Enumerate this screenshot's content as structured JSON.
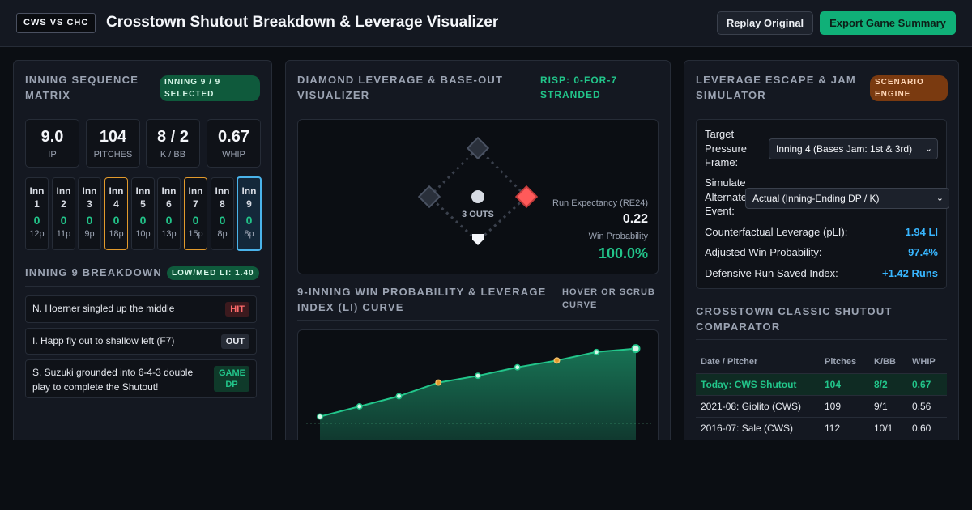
{
  "header": {
    "logo": "CWS VS CHC",
    "title": "Crosstown Shutout Breakdown & Leverage Visualizer",
    "replay_label": "Replay Original",
    "export_label": "Export Game Summary"
  },
  "left": {
    "title": "Inning Sequence Matrix",
    "badge": "INNING 9 / 9 SELECTED",
    "stats": [
      {
        "value": "9.0",
        "label": "IP"
      },
      {
        "value": "104",
        "label": "PITCHES"
      },
      {
        "value": "8 / 2",
        "label": "K / BB"
      },
      {
        "value": "0.67",
        "label": "WHIP"
      }
    ],
    "innings": [
      {
        "title": "Inn 1",
        "runs": "0",
        "pitches": "12p"
      },
      {
        "title": "Inn 2",
        "runs": "0",
        "pitches": "11p"
      },
      {
        "title": "Inn 3",
        "runs": "0",
        "pitches": "9p"
      },
      {
        "title": "Inn 4",
        "runs": "0",
        "pitches": "18p"
      },
      {
        "title": "Inn 5",
        "runs": "0",
        "pitches": "10p"
      },
      {
        "title": "Inn 6",
        "runs": "0",
        "pitches": "13p"
      },
      {
        "title": "Inn 7",
        "runs": "0",
        "pitches": "15p"
      },
      {
        "title": "Inn 8",
        "runs": "0",
        "pitches": "8p"
      },
      {
        "title": "Inn 9",
        "runs": "0",
        "pitches": "8p"
      }
    ],
    "breakdown_title": "Inning 9 Breakdown",
    "breakdown_badge": "LOW/MED LI: 1.40",
    "plays": [
      {
        "text": "N. Hoerner singled up the middle",
        "result": "HIT"
      },
      {
        "text": "I. Happ fly out to shallow left (F7)",
        "result": "OUT"
      },
      {
        "text": "S. Suzuki grounded into 6-4-3 double play to complete the Shutout!",
        "result": "GAME DP"
      }
    ]
  },
  "mid": {
    "title": "Diamond Leverage & Base-Out Visualizer",
    "risp": "RISP: 0-FOR-7 STRANDED",
    "outs": "3 OUTS",
    "re_label": "Run Expectancy (RE24)",
    "re_value": "0.22",
    "wp_label": "Win Probability",
    "wp_value": "100.0%",
    "chart_title": "9-Inning Win Probability & Leverage Index (LI) Curve",
    "chart_hint": "HOVER OR SCRUB CURVE"
  },
  "right": {
    "title": "Leverage Escape & Jam Simulator",
    "badge": "SCENARIO ENGINE",
    "frame_label": "Target Pressure Frame:",
    "frame_value": "Inning 4 (Bases Jam: 1st & 3rd)",
    "event_label": "Simulate Alternate Event:",
    "event_value": "Actual (Inning-Ending DP / K)",
    "rows": [
      {
        "label": "Counterfactual Leverage (pLI):",
        "value": "1.94 LI"
      },
      {
        "label": "Adjusted Win Probability:",
        "value": "97.4%"
      },
      {
        "label": "Defensive Run Saved Index:",
        "value": "+1.42 Runs"
      }
    ],
    "cmp_title": "Crosstown Classic Shutout Comparator",
    "cmp_headers": [
      "Date / Pitcher",
      "Pitches",
      "K/BB",
      "WHIP"
    ],
    "cmp_rows": [
      [
        "Today: CWS Shutout",
        "104",
        "8/2",
        "0.67"
      ],
      [
        "2021-08: Giolito (CWS)",
        "109",
        "9/1",
        "0.56"
      ],
      [
        "2016-07: Sale (CWS)",
        "112",
        "10/1",
        "0.60"
      ]
    ]
  },
  "colors": {
    "accent": "#22c58a",
    "leverage": "#e29a2c",
    "info": "#38b6ff",
    "danger": "#ff5a5a"
  },
  "chart_data": {
    "type": "area",
    "x": [
      1,
      2,
      3,
      4,
      5,
      6,
      7,
      8,
      9
    ],
    "series": [
      {
        "values": [
          0.54,
          0.6,
          0.66,
          0.74,
          0.78,
          0.83,
          0.87,
          0.92,
          0.94
        ]
      }
    ],
    "highlight_points": [
      4,
      7
    ],
    "reference_line": 0.5,
    "ylim": [
      0,
      1
    ]
  }
}
